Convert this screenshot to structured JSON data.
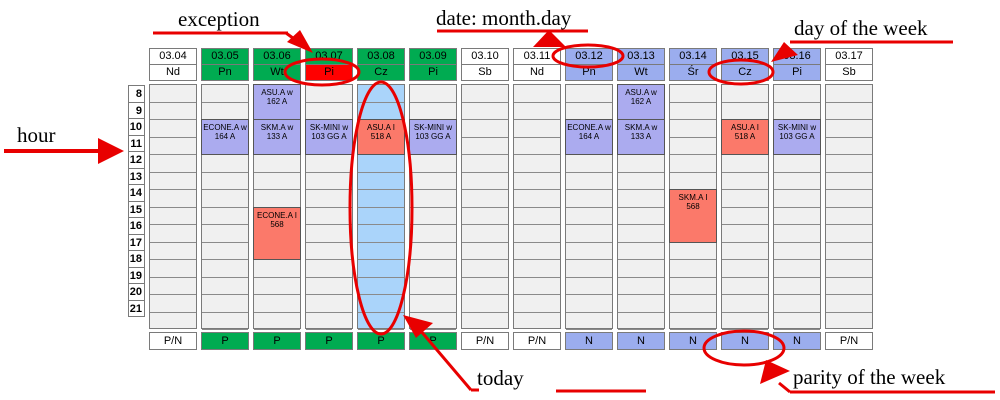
{
  "annotations": {
    "exception": "exception",
    "date_format": "date: month.day",
    "day_of_week": "day of the week",
    "hour": "hour",
    "today": "today",
    "parity": "parity of the week"
  },
  "colors": {
    "week_first": "#00AB51",
    "week_second": "#9BADEE",
    "weekend": "#FFFFFF",
    "exception_day": "#FF0000",
    "today_column": "#AAD4FA",
    "lecture": "#ABABEF",
    "lab": "#FB796A",
    "empty_cell": "#F0F0F0",
    "annotation_red": "#E80000"
  },
  "schedule": {
    "hours": [
      "8",
      "9",
      "10",
      "11",
      "12",
      "13",
      "14",
      "15",
      "16",
      "17",
      "18",
      "19",
      "20",
      "21"
    ],
    "parity_footer_label": "P/N",
    "days": [
      {
        "date": "03.04",
        "day": "Nd",
        "week": "weekend",
        "parity": "P/N",
        "today": false,
        "exception": false,
        "courses": []
      },
      {
        "date": "03.05",
        "day": "Pn",
        "week": "first",
        "parity": "P",
        "today": false,
        "exception": false,
        "courses": [
          {
            "title": "ECONE.A w",
            "room": "164 A",
            "hour_start": 10,
            "hours": 2,
            "type": "lecture"
          }
        ]
      },
      {
        "date": "03.06",
        "day": "Wt",
        "week": "first",
        "parity": "P",
        "today": false,
        "exception": false,
        "courses": [
          {
            "title": "ASU.A w",
            "room": "162 A",
            "hour_start": 8,
            "hours": 2,
            "type": "lecture"
          },
          {
            "title": "SKM.A w",
            "room": "133 A",
            "hour_start": 10,
            "hours": 2,
            "type": "lecture"
          },
          {
            "title": "ECONE.A I",
            "room": "568",
            "hour_start": 15,
            "hours": 3,
            "type": "lab"
          }
        ]
      },
      {
        "date": "03.07",
        "day": "Pi",
        "week": "first",
        "parity": "P",
        "today": false,
        "exception": true,
        "courses": [
          {
            "title": "SK-MINI w",
            "room": "103 GG A",
            "hour_start": 10,
            "hours": 2,
            "type": "lecture"
          }
        ]
      },
      {
        "date": "03.08",
        "day": "Cz",
        "week": "first",
        "parity": "P",
        "today": true,
        "exception": false,
        "courses": [
          {
            "title": "ASU.A I",
            "room": "518 A",
            "hour_start": 10,
            "hours": 2,
            "type": "lab"
          }
        ]
      },
      {
        "date": "03.09",
        "day": "Pi",
        "week": "first",
        "parity": "P",
        "today": false,
        "exception": false,
        "courses": [
          {
            "title": "SK-MINI w",
            "room": "103 GG A",
            "hour_start": 10,
            "hours": 2,
            "type": "lecture"
          }
        ]
      },
      {
        "date": "03.10",
        "day": "Sb",
        "week": "weekend",
        "parity": "P/N",
        "today": false,
        "exception": false,
        "courses": []
      },
      {
        "date": "03.11",
        "day": "Nd",
        "week": "weekend",
        "parity": "P/N",
        "today": false,
        "exception": false,
        "courses": []
      },
      {
        "date": "03.12",
        "day": "Pn",
        "week": "second",
        "parity": "N",
        "today": false,
        "exception": false,
        "courses": [
          {
            "title": "ECONE.A w",
            "room": "164 A",
            "hour_start": 10,
            "hours": 2,
            "type": "lecture"
          }
        ]
      },
      {
        "date": "03.13",
        "day": "Wt",
        "week": "second",
        "parity": "N",
        "today": false,
        "exception": false,
        "courses": [
          {
            "title": "ASU.A w",
            "room": "162 A",
            "hour_start": 8,
            "hours": 2,
            "type": "lecture"
          },
          {
            "title": "SKM.A w",
            "room": "133 A",
            "hour_start": 10,
            "hours": 2,
            "type": "lecture"
          }
        ]
      },
      {
        "date": "03.14",
        "day": "Śr",
        "week": "second",
        "parity": "N",
        "today": false,
        "exception": false,
        "courses": [
          {
            "title": "SKM.A I",
            "room": "568",
            "hour_start": 14,
            "hours": 3,
            "type": "lab"
          }
        ]
      },
      {
        "date": "03.15",
        "day": "Cz",
        "week": "second",
        "parity": "N",
        "today": false,
        "exception": false,
        "courses": [
          {
            "title": "ASU.A I",
            "room": "518 A",
            "hour_start": 10,
            "hours": 2,
            "type": "lab"
          }
        ]
      },
      {
        "date": "03.16",
        "day": "Pi",
        "week": "second",
        "parity": "N",
        "today": false,
        "exception": false,
        "courses": [
          {
            "title": "SK-MINI w",
            "room": "103 GG A",
            "hour_start": 10,
            "hours": 2,
            "type": "lecture"
          }
        ]
      },
      {
        "date": "03.17",
        "day": "Sb",
        "week": "weekend",
        "parity": "P/N",
        "today": false,
        "exception": false,
        "courses": []
      }
    ]
  }
}
